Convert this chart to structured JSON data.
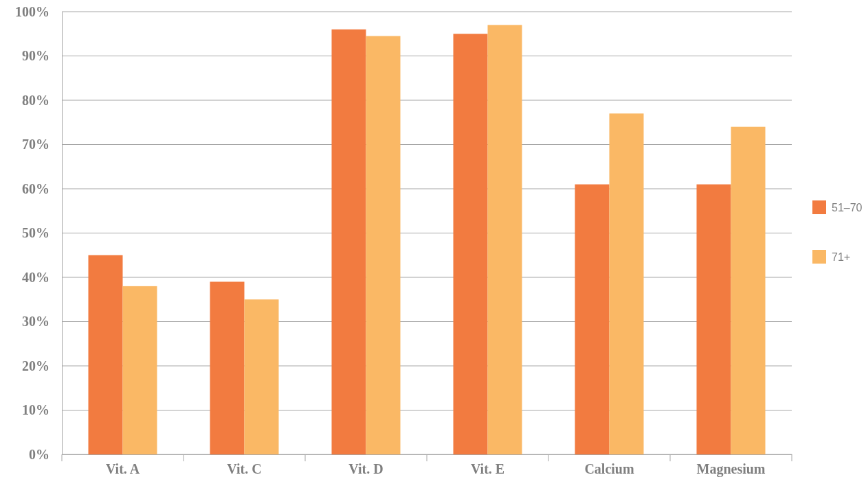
{
  "chart_data": {
    "type": "bar",
    "categories": [
      "Vit. A",
      "Vit. C",
      "Vit. D",
      "Vit. E",
      "Calcium",
      "Magnesium"
    ],
    "series": [
      {
        "name": "51–70",
        "color": "#f27b40",
        "values": [
          45,
          39,
          96,
          95,
          61,
          61
        ]
      },
      {
        "name": "71+",
        "color": "#fab865",
        "values": [
          38,
          35,
          94.5,
          97,
          77,
          74
        ]
      }
    ],
    "ylim": [
      0,
      100
    ],
    "yticks": [
      {
        "value": 0,
        "label": "0%"
      },
      {
        "value": 10,
        "label": "10%"
      },
      {
        "value": 20,
        "label": "20%"
      },
      {
        "value": 30,
        "label": "30%"
      },
      {
        "value": 40,
        "label": "40%"
      },
      {
        "value": 50,
        "label": "50%"
      },
      {
        "value": 60,
        "label": "60%"
      },
      {
        "value": 70,
        "label": "70%"
      },
      {
        "value": 80,
        "label": "80%"
      },
      {
        "value": 90,
        "label": "90%"
      },
      {
        "value": 100,
        "label": "100%"
      }
    ],
    "grid": "y",
    "legend": "right"
  }
}
